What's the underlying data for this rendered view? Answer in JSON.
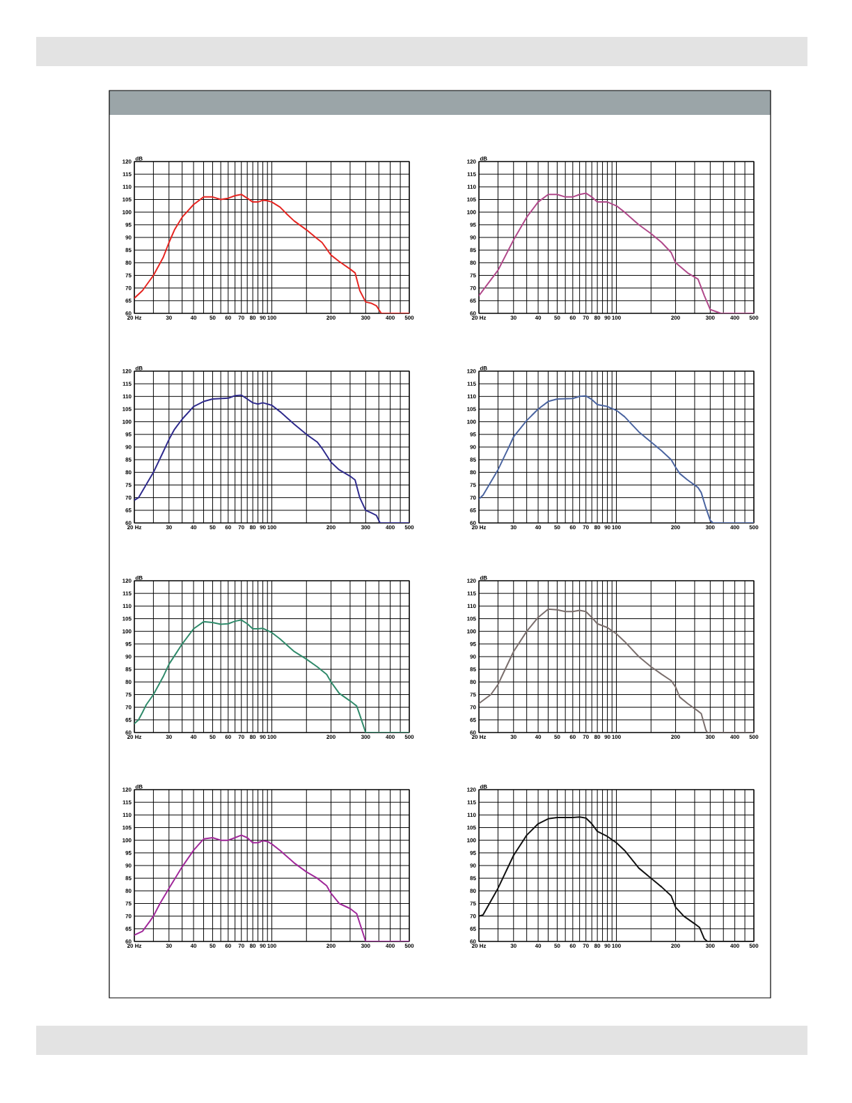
{
  "chart_data": [
    {
      "type": "line",
      "ylabel": "dB",
      "log": "x",
      "grid": true,
      "xlim": [
        20,
        500
      ],
      "ylim": [
        60,
        120
      ],
      "xticks": [
        {
          "value": 20,
          "label": "20 Hz"
        },
        {
          "value": 25,
          "label": null
        },
        30,
        {
          "value": 35,
          "label": null
        },
        40,
        {
          "value": 45,
          "label": null
        },
        50,
        {
          "value": 55,
          "label": null
        },
        60,
        {
          "value": 65,
          "label": null
        },
        70,
        {
          "value": 75,
          "label": null
        },
        80,
        {
          "value": 85,
          "label": null
        },
        90,
        {
          "value": 95,
          "label": null
        },
        100,
        {
          "value": 150,
          "label": null
        },
        200,
        {
          "value": 250,
          "label": null
        },
        300,
        {
          "value": 350,
          "label": null
        },
        400,
        {
          "value": 450,
          "label": null
        },
        500
      ],
      "yticks": [
        60,
        65,
        70,
        75,
        80,
        85,
        90,
        95,
        100,
        105,
        110,
        115,
        120
      ],
      "series": [
        {
          "color": "#e52420",
          "x": [
            20,
            22,
            25,
            28,
            30,
            32,
            35,
            40,
            45,
            50,
            55,
            60,
            65,
            70,
            75,
            80,
            85,
            90,
            95,
            100,
            110,
            120,
            130,
            150,
            170,
            180,
            200,
            220,
            250,
            265,
            280,
            300,
            320,
            340,
            360,
            400,
            500
          ],
          "values": [
            66,
            69,
            75,
            82,
            88,
            93,
            98,
            103,
            106,
            106,
            105,
            105.5,
            106.5,
            107,
            105.5,
            104,
            104,
            104.7,
            104.5,
            104,
            102,
            99,
            96.5,
            93,
            89.5,
            88,
            83,
            80.5,
            77.5,
            76,
            69,
            64.5,
            64,
            63,
            60,
            60,
            60
          ]
        }
      ]
    },
    {
      "type": "line",
      "ylabel": "dB",
      "log": "x",
      "grid": true,
      "xlim": [
        20,
        500
      ],
      "ylim": [
        60,
        120
      ],
      "xticks": [
        {
          "value": 20,
          "label": "20 Hz"
        },
        {
          "value": 25,
          "label": null
        },
        30,
        {
          "value": 35,
          "label": null
        },
        40,
        {
          "value": 45,
          "label": null
        },
        50,
        {
          "value": 55,
          "label": null
        },
        60,
        {
          "value": 65,
          "label": null
        },
        70,
        {
          "value": 75,
          "label": null
        },
        80,
        {
          "value": 85,
          "label": null
        },
        90,
        {
          "value": 95,
          "label": null
        },
        100,
        {
          "value": 150,
          "label": null
        },
        200,
        {
          "value": 250,
          "label": null
        },
        300,
        {
          "value": 350,
          "label": null
        },
        400,
        {
          "value": 450,
          "label": null
        },
        500
      ],
      "yticks": [
        60,
        65,
        70,
        75,
        80,
        85,
        90,
        95,
        100,
        105,
        110,
        115,
        120
      ],
      "series": [
        {
          "color": "#b0488a",
          "x": [
            20,
            25,
            30,
            35,
            40,
            45,
            50,
            55,
            60,
            65,
            70,
            75,
            80,
            90,
            100,
            110,
            130,
            150,
            170,
            190,
            200,
            230,
            260,
            280,
            300,
            340,
            400,
            500
          ],
          "values": [
            67,
            77,
            89,
            98,
            104,
            107,
            107,
            106,
            106,
            107,
            107.5,
            106,
            104,
            104,
            102.5,
            100,
            95,
            91.5,
            88,
            84,
            80,
            76,
            73.5,
            67,
            61.5,
            60,
            60,
            60
          ]
        }
      ]
    },
    {
      "type": "line",
      "ylabel": "dB",
      "log": "x",
      "grid": true,
      "xlim": [
        20,
        500
      ],
      "ylim": [
        60,
        120
      ],
      "xticks": [
        {
          "value": 20,
          "label": "20 Hz"
        },
        {
          "value": 25,
          "label": null
        },
        30,
        {
          "value": 35,
          "label": null
        },
        40,
        {
          "value": 45,
          "label": null
        },
        50,
        {
          "value": 55,
          "label": null
        },
        60,
        {
          "value": 65,
          "label": null
        },
        70,
        {
          "value": 75,
          "label": null
        },
        80,
        {
          "value": 85,
          "label": null
        },
        90,
        {
          "value": 95,
          "label": null
        },
        100,
        {
          "value": 150,
          "label": null
        },
        200,
        {
          "value": 250,
          "label": null
        },
        300,
        {
          "value": 350,
          "label": null
        },
        400,
        {
          "value": 450,
          "label": null
        },
        500
      ],
      "yticks": [
        60,
        65,
        70,
        75,
        80,
        85,
        90,
        95,
        100,
        105,
        110,
        115,
        120
      ],
      "series": [
        {
          "color": "#2e2a8c",
          "x": [
            20,
            21,
            25,
            28,
            30,
            32,
            35,
            40,
            45,
            50,
            60,
            65,
            70,
            75,
            80,
            85,
            90,
            100,
            110,
            130,
            150,
            170,
            180,
            200,
            220,
            250,
            265,
            280,
            300,
            320,
            340,
            355,
            400,
            500
          ],
          "values": [
            69,
            70,
            80,
            88,
            93,
            97,
            101,
            106,
            108,
            109,
            109.3,
            110.3,
            110.5,
            109,
            107.5,
            107,
            107.5,
            106.5,
            104,
            99,
            95,
            92,
            89.5,
            84,
            81,
            78.5,
            77,
            70,
            65,
            64,
            63,
            60,
            60,
            60
          ]
        }
      ]
    },
    {
      "type": "line",
      "ylabel": "dB",
      "log": "x",
      "grid": true,
      "xlim": [
        20,
        500
      ],
      "ylim": [
        60,
        120
      ],
      "xticks": [
        {
          "value": 20,
          "label": "20 Hz"
        },
        {
          "value": 25,
          "label": null
        },
        30,
        {
          "value": 35,
          "label": null
        },
        40,
        {
          "value": 45,
          "label": null
        },
        50,
        {
          "value": 55,
          "label": null
        },
        60,
        {
          "value": 65,
          "label": null
        },
        70,
        {
          "value": 75,
          "label": null
        },
        80,
        {
          "value": 85,
          "label": null
        },
        90,
        {
          "value": 95,
          "label": null
        },
        100,
        {
          "value": 150,
          "label": null
        },
        200,
        {
          "value": 250,
          "label": null
        },
        300,
        {
          "value": 350,
          "label": null
        },
        400,
        {
          "value": 450,
          "label": null
        },
        500
      ],
      "yticks": [
        60,
        65,
        70,
        75,
        80,
        85,
        90,
        95,
        100,
        105,
        110,
        115,
        120
      ],
      "series": [
        {
          "color": "#4a64a0",
          "x": [
            20,
            21,
            25,
            28,
            30,
            35,
            40,
            45,
            50,
            60,
            65,
            70,
            75,
            80,
            90,
            100,
            110,
            130,
            150,
            170,
            190,
            200,
            210,
            230,
            260,
            270,
            285,
            300,
            310,
            400,
            500
          ],
          "values": [
            69.5,
            71,
            81,
            89,
            94,
            100.5,
            105,
            108,
            109,
            109.2,
            110,
            110.2,
            108.8,
            106.8,
            106,
            104.5,
            102,
            96,
            92,
            88.5,
            85,
            82,
            79.5,
            77,
            74,
            72,
            66,
            61,
            60,
            60,
            60
          ]
        }
      ]
    },
    {
      "type": "line",
      "ylabel": "dB",
      "log": "x",
      "grid": true,
      "xlim": [
        20,
        500
      ],
      "ylim": [
        60,
        120
      ],
      "xticks": [
        {
          "value": 20,
          "label": "20 Hz"
        },
        {
          "value": 25,
          "label": null
        },
        30,
        {
          "value": 35,
          "label": null
        },
        40,
        {
          "value": 45,
          "label": null
        },
        50,
        {
          "value": 55,
          "label": null
        },
        60,
        {
          "value": 65,
          "label": null
        },
        70,
        {
          "value": 75,
          "label": null
        },
        80,
        {
          "value": 85,
          "label": null
        },
        90,
        {
          "value": 95,
          "label": null
        },
        100,
        {
          "value": 150,
          "label": null
        },
        200,
        {
          "value": 250,
          "label": null
        },
        300,
        {
          "value": 350,
          "label": null
        },
        400,
        {
          "value": 450,
          "label": null
        },
        500
      ],
      "yticks": [
        60,
        65,
        70,
        75,
        80,
        85,
        90,
        95,
        100,
        105,
        110,
        115,
        120
      ],
      "series": [
        {
          "color": "#2f8a6a",
          "x": [
            20,
            21,
            22,
            23,
            25,
            28,
            30,
            35,
            40,
            45,
            50,
            55,
            60,
            65,
            70,
            75,
            80,
            85,
            90,
            100,
            110,
            130,
            150,
            170,
            190,
            200,
            220,
            250,
            270,
            280,
            300,
            400,
            500
          ],
          "values": [
            63.5,
            65,
            68,
            71,
            75,
            82,
            87,
            95,
            101,
            103.8,
            103.5,
            102.8,
            103,
            104,
            104.5,
            103,
            101,
            101,
            101.2,
            99.5,
            97,
            92,
            89,
            86,
            83,
            80,
            75.5,
            72.5,
            70.5,
            67,
            60,
            60,
            60
          ]
        }
      ]
    },
    {
      "type": "line",
      "ylabel": "dB",
      "log": "x",
      "grid": true,
      "xlim": [
        20,
        500
      ],
      "ylim": [
        60,
        120
      ],
      "xticks": [
        {
          "value": 20,
          "label": "20 Hz"
        },
        {
          "value": 25,
          "label": null
        },
        30,
        {
          "value": 35,
          "label": null
        },
        40,
        {
          "value": 45,
          "label": null
        },
        50,
        {
          "value": 55,
          "label": null
        },
        60,
        {
          "value": 65,
          "label": null
        },
        70,
        {
          "value": 75,
          "label": null
        },
        80,
        {
          "value": 85,
          "label": null
        },
        90,
        {
          "value": 95,
          "label": null
        },
        100,
        {
          "value": 150,
          "label": null
        },
        200,
        {
          "value": 250,
          "label": null
        },
        300,
        {
          "value": 350,
          "label": null
        },
        400,
        {
          "value": 450,
          "label": null
        },
        500
      ],
      "yticks": [
        60,
        65,
        70,
        75,
        80,
        85,
        90,
        95,
        100,
        105,
        110,
        115,
        120
      ],
      "series": [
        {
          "color": "#7a6e6c",
          "x": [
            20,
            23,
            25,
            30,
            35,
            40,
            45,
            50,
            55,
            60,
            65,
            70,
            75,
            80,
            90,
            100,
            110,
            130,
            150,
            170,
            190,
            200,
            210,
            230,
            260,
            270,
            285,
            290,
            400,
            500
          ],
          "values": [
            71.5,
            75,
            79,
            92,
            100,
            105.5,
            108.8,
            108.5,
            107.8,
            107.8,
            108.3,
            107.8,
            105.5,
            103,
            101.5,
            99,
            96,
            90,
            86,
            83,
            80.5,
            78,
            74,
            71.5,
            68.5,
            67.5,
            61,
            60,
            60,
            60
          ]
        }
      ]
    },
    {
      "type": "line",
      "ylabel": "dB",
      "log": "x",
      "grid": true,
      "xlim": [
        20,
        500
      ],
      "ylim": [
        60,
        120
      ],
      "xticks": [
        {
          "value": 20,
          "label": "20 Hz"
        },
        {
          "value": 25,
          "label": null
        },
        30,
        {
          "value": 35,
          "label": null
        },
        40,
        {
          "value": 45,
          "label": null
        },
        50,
        {
          "value": 55,
          "label": null
        },
        60,
        {
          "value": 65,
          "label": null
        },
        70,
        {
          "value": 75,
          "label": null
        },
        80,
        {
          "value": 85,
          "label": null
        },
        90,
        {
          "value": 95,
          "label": null
        },
        100,
        {
          "value": 150,
          "label": null
        },
        200,
        {
          "value": 250,
          "label": null
        },
        300,
        {
          "value": 350,
          "label": null
        },
        400,
        {
          "value": 450,
          "label": null
        },
        500
      ],
      "yticks": [
        60,
        65,
        70,
        75,
        80,
        85,
        90,
        95,
        100,
        105,
        110,
        115,
        120
      ],
      "series": [
        {
          "color": "#a0289a",
          "x": [
            20,
            22,
            24,
            25,
            27,
            30,
            35,
            40,
            45,
            50,
            55,
            60,
            65,
            70,
            75,
            80,
            85,
            90,
            95,
            100,
            110,
            130,
            150,
            170,
            190,
            200,
            220,
            250,
            270,
            300,
            400,
            500
          ],
          "values": [
            62.5,
            64,
            68,
            70,
            75,
            81,
            89.5,
            96,
            100.5,
            101,
            100,
            100,
            101,
            102,
            101,
            99,
            99,
            99.8,
            99.5,
            98.5,
            96,
            91,
            87.5,
            85,
            82,
            79,
            75,
            73,
            71,
            60,
            60,
            60
          ]
        }
      ]
    },
    {
      "type": "line",
      "ylabel": "dB",
      "log": "x",
      "grid": true,
      "xlim": [
        20,
        500
      ],
      "ylim": [
        60,
        120
      ],
      "xticks": [
        {
          "value": 20,
          "label": "20 Hz"
        },
        {
          "value": 25,
          "label": null
        },
        30,
        {
          "value": 35,
          "label": null
        },
        40,
        {
          "value": 45,
          "label": null
        },
        50,
        {
          "value": 55,
          "label": null
        },
        60,
        {
          "value": 65,
          "label": null
        },
        70,
        {
          "value": 75,
          "label": null
        },
        80,
        {
          "value": 85,
          "label": null
        },
        90,
        {
          "value": 95,
          "label": null
        },
        100,
        {
          "value": 150,
          "label": null
        },
        200,
        {
          "value": 250,
          "label": null
        },
        300,
        {
          "value": 350,
          "label": null
        },
        400,
        {
          "value": 450,
          "label": null
        },
        500
      ],
      "yticks": [
        60,
        65,
        70,
        75,
        80,
        85,
        90,
        95,
        100,
        105,
        110,
        115,
        120
      ],
      "series": [
        {
          "color": "#111111",
          "x": [
            20,
            21,
            25,
            30,
            35,
            40,
            45,
            50,
            60,
            65,
            70,
            75,
            80,
            90,
            100,
            110,
            130,
            150,
            170,
            190,
            200,
            220,
            250,
            265,
            280,
            290,
            400,
            500
          ],
          "values": [
            70,
            70.5,
            81,
            94,
            102,
            106.5,
            108.5,
            109,
            109,
            109.2,
            108.8,
            106.5,
            103.5,
            101.5,
            99,
            96,
            89,
            85,
            81.5,
            78,
            73.5,
            70,
            67,
            65.5,
            61,
            60,
            60,
            60
          ]
        }
      ]
    }
  ]
}
